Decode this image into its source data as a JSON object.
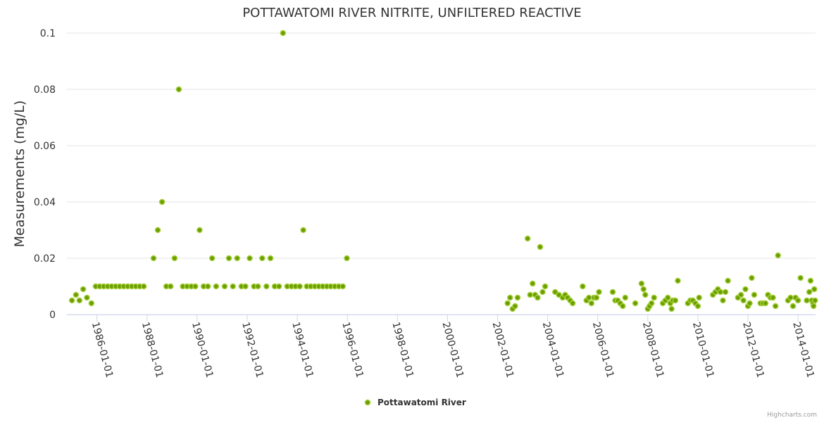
{
  "chart_data": {
    "type": "scatter",
    "title": "POTTAWATOMI RIVER NITRITE, UNFILTERED REACTIVE",
    "xlabel": "",
    "ylabel": "Measurements (mg/L)",
    "x_type": "datetime",
    "xlim": [
      1984.8,
      2014.7
    ],
    "ylim": [
      0,
      0.1
    ],
    "y_ticks": [
      0,
      0.02,
      0.04,
      0.06,
      0.08,
      0.1
    ],
    "y_tick_labels": [
      "0",
      "0.02",
      "0.04",
      "0.06",
      "0.08",
      "0.1"
    ],
    "x_ticks": [
      1986,
      1988,
      1990,
      1992,
      1994,
      1996,
      1998,
      2000,
      2002,
      2004,
      2006,
      2008,
      2010,
      2012,
      2014
    ],
    "x_tick_labels": [
      "1986-01-01",
      "1988-01-01",
      "1990-01-01",
      "1992-01-01",
      "1994-01-01",
      "1996-01-01",
      "1998-01-01",
      "2000-01-01",
      "2002-01-01",
      "2004-01-01",
      "2006-01-01",
      "2008-01-01",
      "2010-01-01",
      "2012-01-01",
      "2014-01-01"
    ],
    "grid": true,
    "legend": "bottom-center",
    "colors": {
      "marker_fill": "#6a9e00",
      "marker_stroke": "#a6cf3c",
      "grid": "#e6e6e6",
      "title": "#333333"
    },
    "series": [
      {
        "name": "Pottawatomi River",
        "points": [
          [
            1985.0,
            0.005
          ],
          [
            1985.16,
            0.007
          ],
          [
            1985.3,
            0.005
          ],
          [
            1985.45,
            0.009
          ],
          [
            1985.6,
            0.006
          ],
          [
            1985.78,
            0.004
          ],
          [
            1985.95,
            0.01
          ],
          [
            1986.11,
            0.01
          ],
          [
            1986.27,
            0.01
          ],
          [
            1986.43,
            0.01
          ],
          [
            1986.59,
            0.01
          ],
          [
            1986.75,
            0.01
          ],
          [
            1986.91,
            0.01
          ],
          [
            1987.07,
            0.01
          ],
          [
            1987.23,
            0.01
          ],
          [
            1987.39,
            0.01
          ],
          [
            1987.55,
            0.01
          ],
          [
            1987.71,
            0.01
          ],
          [
            1987.87,
            0.01
          ],
          [
            1988.26,
            0.02
          ],
          [
            1988.43,
            0.03
          ],
          [
            1988.6,
            0.04
          ],
          [
            1988.77,
            0.01
          ],
          [
            1988.94,
            0.01
          ],
          [
            1989.1,
            0.02
          ],
          [
            1989.27,
            0.08
          ],
          [
            1989.43,
            0.01
          ],
          [
            1989.6,
            0.01
          ],
          [
            1989.77,
            0.01
          ],
          [
            1989.93,
            0.01
          ],
          [
            1990.1,
            0.03
          ],
          [
            1990.26,
            0.01
          ],
          [
            1990.43,
            0.01
          ],
          [
            1990.6,
            0.02
          ],
          [
            1990.76,
            0.01
          ],
          [
            1991.1,
            0.01
          ],
          [
            1991.27,
            0.02
          ],
          [
            1991.43,
            0.01
          ],
          [
            1991.6,
            0.02
          ],
          [
            1991.77,
            0.01
          ],
          [
            1991.93,
            0.01
          ],
          [
            1992.1,
            0.02
          ],
          [
            1992.27,
            0.01
          ],
          [
            1992.43,
            0.01
          ],
          [
            1992.6,
            0.02
          ],
          [
            1992.77,
            0.01
          ],
          [
            1992.93,
            0.02
          ],
          [
            1993.1,
            0.01
          ],
          [
            1993.27,
            0.01
          ],
          [
            1993.43,
            0.1
          ],
          [
            1993.6,
            0.01
          ],
          [
            1993.77,
            0.01
          ],
          [
            1993.93,
            0.01
          ],
          [
            1994.1,
            0.01
          ],
          [
            1994.24,
            0.03
          ],
          [
            1994.38,
            0.01
          ],
          [
            1994.54,
            0.01
          ],
          [
            1994.7,
            0.01
          ],
          [
            1994.86,
            0.01
          ],
          [
            1995.02,
            0.01
          ],
          [
            1995.18,
            0.01
          ],
          [
            1995.34,
            0.01
          ],
          [
            1995.5,
            0.01
          ],
          [
            1995.66,
            0.01
          ],
          [
            1995.82,
            0.01
          ],
          [
            1995.98,
            0.02
          ],
          [
            2002.4,
            0.004
          ],
          [
            2002.5,
            0.006
          ],
          [
            2002.6,
            0.002
          ],
          [
            2002.7,
            0.003
          ],
          [
            2002.8,
            0.006
          ],
          [
            2003.2,
            0.027
          ],
          [
            2003.3,
            0.007
          ],
          [
            2003.4,
            0.011
          ],
          [
            2003.5,
            0.007
          ],
          [
            2003.6,
            0.006
          ],
          [
            2003.7,
            0.024
          ],
          [
            2003.8,
            0.008
          ],
          [
            2003.9,
            0.01
          ],
          [
            2004.3,
            0.008
          ],
          [
            2004.45,
            0.007
          ],
          [
            2004.6,
            0.006
          ],
          [
            2004.7,
            0.007
          ],
          [
            2004.8,
            0.006
          ],
          [
            2004.9,
            0.005
          ],
          [
            2005.0,
            0.004
          ],
          [
            2005.4,
            0.01
          ],
          [
            2005.55,
            0.005
          ],
          [
            2005.65,
            0.006
          ],
          [
            2005.75,
            0.004
          ],
          [
            2005.85,
            0.006
          ],
          [
            2005.95,
            0.006
          ],
          [
            2006.05,
            0.008
          ],
          [
            2006.6,
            0.008
          ],
          [
            2006.7,
            0.005
          ],
          [
            2006.8,
            0.005
          ],
          [
            2006.9,
            0.004
          ],
          [
            2007.0,
            0.003
          ],
          [
            2007.1,
            0.006
          ],
          [
            2007.5,
            0.004
          ],
          [
            2007.75,
            0.011
          ],
          [
            2007.83,
            0.009
          ],
          [
            2007.9,
            0.007
          ],
          [
            2008.0,
            0.002
          ],
          [
            2008.07,
            0.003
          ],
          [
            2008.15,
            0.004
          ],
          [
            2008.25,
            0.006
          ],
          [
            2008.6,
            0.004
          ],
          [
            2008.7,
            0.005
          ],
          [
            2008.8,
            0.006
          ],
          [
            2008.9,
            0.004
          ],
          [
            2008.95,
            0.002
          ],
          [
            2009.0,
            0.005
          ],
          [
            2009.1,
            0.005
          ],
          [
            2009.2,
            0.012
          ],
          [
            2009.6,
            0.004
          ],
          [
            2009.7,
            0.005
          ],
          [
            2009.8,
            0.005
          ],
          [
            2009.9,
            0.004
          ],
          [
            2010.0,
            0.003
          ],
          [
            2010.05,
            0.006
          ],
          [
            2010.6,
            0.007
          ],
          [
            2010.7,
            0.008
          ],
          [
            2010.8,
            0.009
          ],
          [
            2010.9,
            0.008
          ],
          [
            2011.0,
            0.005
          ],
          [
            2011.1,
            0.008
          ],
          [
            2011.2,
            0.012
          ],
          [
            2011.6,
            0.006
          ],
          [
            2011.72,
            0.007
          ],
          [
            2011.82,
            0.005
          ],
          [
            2011.9,
            0.009
          ],
          [
            2012.0,
            0.003
          ],
          [
            2012.07,
            0.004
          ],
          [
            2012.15,
            0.013
          ],
          [
            2012.25,
            0.007
          ],
          [
            2012.5,
            0.004
          ],
          [
            2012.6,
            0.004
          ],
          [
            2012.7,
            0.004
          ],
          [
            2012.8,
            0.007
          ],
          [
            2012.9,
            0.006
          ],
          [
            2013.0,
            0.006
          ],
          [
            2013.1,
            0.003
          ],
          [
            2013.2,
            0.021
          ],
          [
            2013.6,
            0.005
          ],
          [
            2013.7,
            0.006
          ],
          [
            2013.8,
            0.003
          ],
          [
            2013.9,
            0.006
          ],
          [
            2014.0,
            0.005
          ],
          [
            2014.1,
            0.013
          ],
          [
            2014.35,
            0.005
          ],
          [
            2014.45,
            0.008
          ],
          [
            2014.5,
            0.012
          ],
          [
            2014.55,
            0.005
          ],
          [
            2014.6,
            0.004
          ],
          [
            2014.62,
            0.003
          ],
          [
            2014.65,
            0.009
          ],
          [
            2014.68,
            0.005
          ]
        ]
      }
    ]
  },
  "credit": "Highcharts.com"
}
